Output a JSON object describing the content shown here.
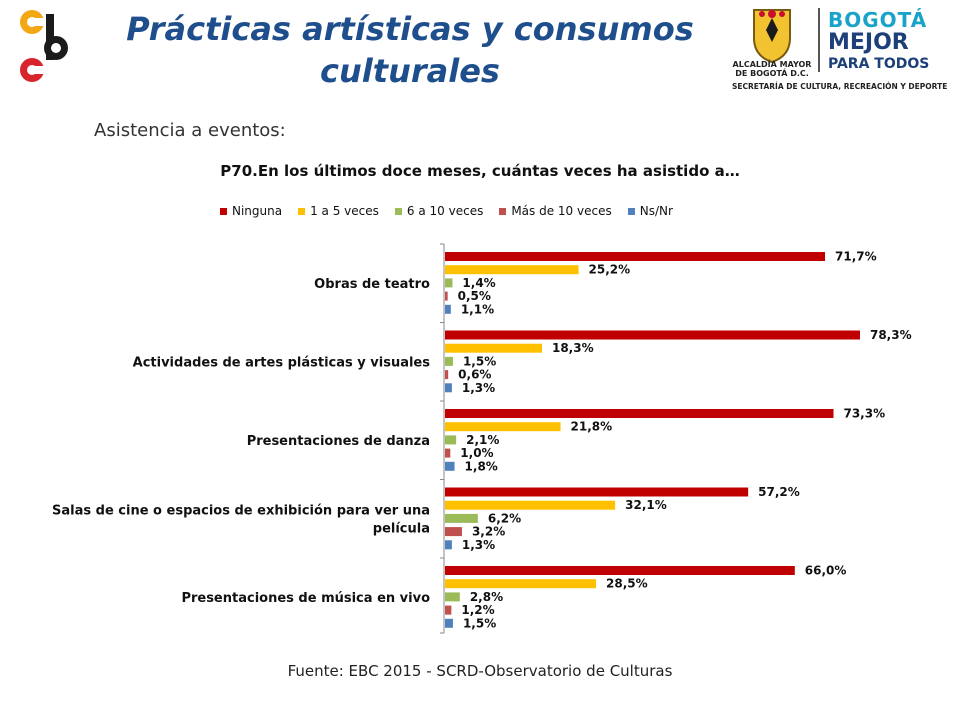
{
  "header": {
    "title_line1": "Prácticas artísticas y consumos",
    "title_line2": "culturales",
    "seal_caption_line1": "ALCALDÍA MAYOR",
    "seal_caption_line2": "DE BOGOTÁ D.C.",
    "brand_line1": "BOGOTÁ",
    "brand_line2": "MEJOR",
    "brand_line3": "PARA TODOS",
    "brand_sub": "SECRETARÍA DE CULTURA, RECREACIÓN Y DEPORTE"
  },
  "subtitle": "Asistencia a eventos:",
  "source": "Fuente: EBC  2015 - SCRD-Observatorio  de Culturas",
  "chart_data": {
    "type": "bar",
    "orientation": "horizontal",
    "title": "P70.En los últimos doce meses, cuántas veces ha asistido a…",
    "categories": [
      [
        "Obras de teatro"
      ],
      [
        "Actividades de artes plásticas y visuales"
      ],
      [
        "Presentaciones de danza"
      ],
      [
        "Salas de cine o espacios de exhibición para ver una",
        "película"
      ],
      [
        "Presentaciones de música en vivo"
      ]
    ],
    "series": [
      {
        "name": "Ninguna",
        "color": "#c00000",
        "values": [
          71.7,
          78.3,
          73.3,
          57.2,
          66.0
        ],
        "labels": [
          "71,7%",
          "78,3%",
          "73,3%",
          "57,2%",
          "66,0%"
        ]
      },
      {
        "name": "1 a 5 veces",
        "color": "#ffc000",
        "values": [
          25.2,
          18.3,
          21.8,
          32.1,
          28.5
        ],
        "labels": [
          "25,2%",
          "18,3%",
          "21,8%",
          "32,1%",
          "28,5%"
        ]
      },
      {
        "name": "6 a 10 veces",
        "color": "#9bbb59",
        "values": [
          1.4,
          1.5,
          2.1,
          6.2,
          2.8
        ],
        "labels": [
          "1,4%",
          "1,5%",
          "2,1%",
          "6,2%",
          "2,8%"
        ]
      },
      {
        "name": "Más de 10 veces",
        "color": "#c0504d",
        "values": [
          0.5,
          0.6,
          1.0,
          3.2,
          1.2
        ],
        "labels": [
          "0,5%",
          "0,6%",
          "1,0%",
          "3,2%",
          "1,2%"
        ]
      },
      {
        "name": "Ns/Nr",
        "color": "#4f81bd",
        "values": [
          1.1,
          1.3,
          1.8,
          1.3,
          1.5
        ],
        "labels": [
          "1,1%",
          "1,3%",
          "1,8%",
          "1,3%",
          "1,5%"
        ]
      }
    ],
    "xlim": [
      0,
      100
    ],
    "legend_position": "top"
  }
}
